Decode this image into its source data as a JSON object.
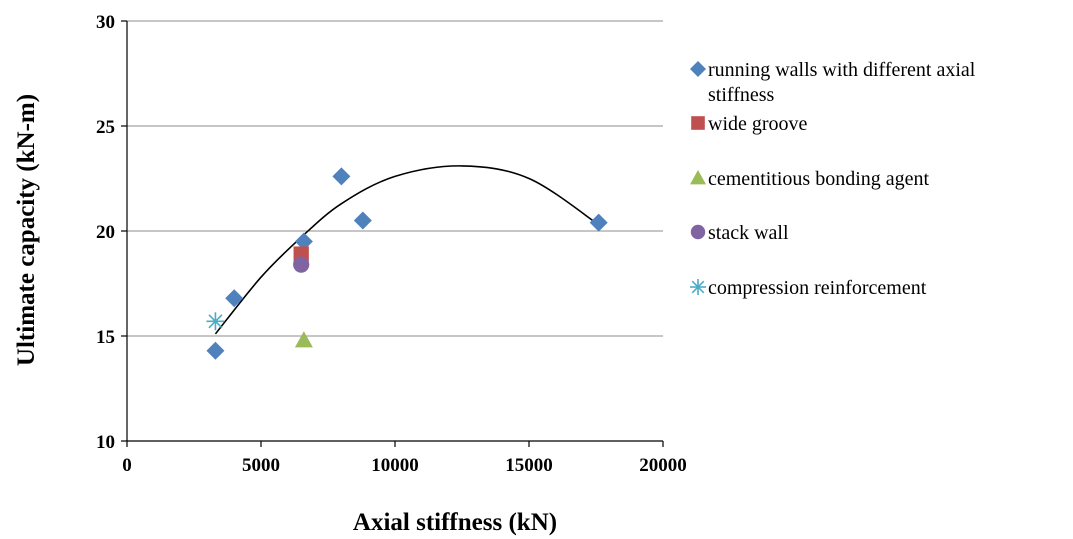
{
  "chart_data": {
    "type": "scatter",
    "title": "",
    "xlabel": "Axial stiffness (kN)",
    "ylabel": "Ultimate  capacity (kN-m)",
    "xlim": [
      0,
      20000
    ],
    "ylim": [
      10,
      30
    ],
    "x_ticks": [
      "0",
      "5000",
      "10000",
      "15000",
      "20000"
    ],
    "y_ticks": [
      "10",
      "15",
      "20",
      "25",
      "30"
    ],
    "grid": "horizontal",
    "legend_position": "right",
    "series": [
      {
        "name": "running walls with different axial stiffness",
        "marker": "diamond",
        "color": "#4f81bd",
        "points": [
          [
            3300,
            14.3
          ],
          [
            4000,
            16.8
          ],
          [
            6600,
            19.5
          ],
          [
            8000,
            22.6
          ],
          [
            8800,
            20.5
          ],
          [
            17600,
            20.4
          ]
        ]
      },
      {
        "name": "wide groove",
        "marker": "square",
        "color": "#c0504d",
        "points": [
          [
            6500,
            18.9
          ]
        ]
      },
      {
        "name": "cementitious bonding agent",
        "marker": "triangle",
        "color": "#9bbb59",
        "points": [
          [
            6600,
            14.8
          ]
        ]
      },
      {
        "name": "stack wall",
        "marker": "circle",
        "color": "#8064a2",
        "points": [
          [
            6500,
            18.4
          ]
        ]
      },
      {
        "name": "compression reinforcement",
        "marker": "asterisk",
        "color": "#4bacc6",
        "points": [
          [
            3300,
            15.7
          ]
        ]
      }
    ],
    "trendline": {
      "type": "polynomial",
      "color": "#000000",
      "points": [
        [
          3300,
          15.1
        ],
        [
          5000,
          17.8
        ],
        [
          6500,
          19.7
        ],
        [
          8000,
          21.3
        ],
        [
          10000,
          22.6
        ],
        [
          12500,
          23.1
        ],
        [
          15000,
          22.5
        ],
        [
          17600,
          20.3
        ]
      ]
    }
  }
}
